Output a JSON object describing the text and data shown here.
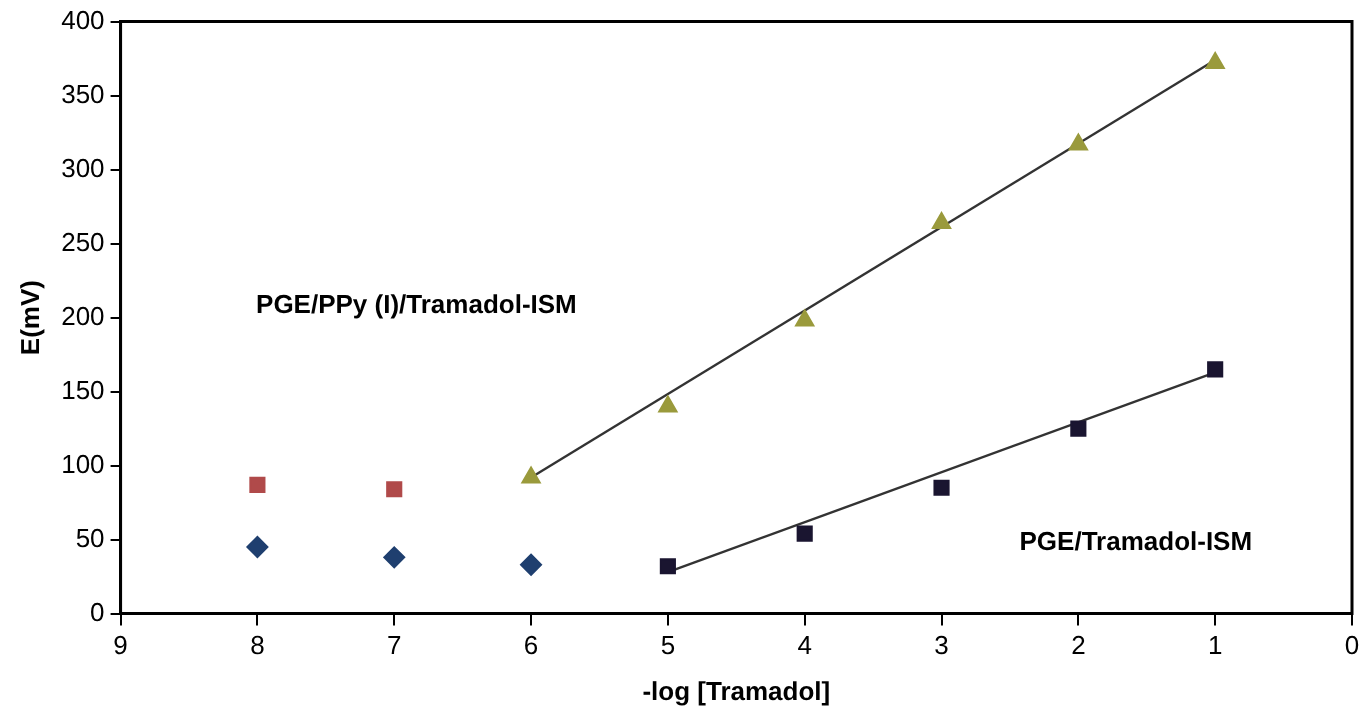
{
  "chart_data": {
    "type": "scatter",
    "xlabel": "-log [Tramadol]",
    "ylabel": "E(mV)",
    "xlim": [
      9,
      0
    ],
    "xticks": [
      9,
      8,
      7,
      6,
      5,
      4,
      3,
      2,
      1,
      0
    ],
    "ylim": [
      0,
      400
    ],
    "yticks": [
      0,
      50,
      100,
      150,
      200,
      250,
      300,
      350,
      400
    ],
    "grid": false,
    "legend": false,
    "series": [
      {
        "marker": "square",
        "color": "#b04a4a",
        "x": [
          8,
          7
        ],
        "values": [
          87,
          84
        ]
      },
      {
        "marker": "triangle",
        "color": "#9a9a3c",
        "x": [
          6,
          5,
          4,
          3,
          2,
          1
        ],
        "values": [
          92,
          140,
          198,
          264,
          317,
          372
        ]
      },
      {
        "marker": "diamond",
        "color": "#1f3f6f",
        "x": [
          8,
          7,
          6
        ],
        "values": [
          45,
          38,
          33
        ]
      },
      {
        "marker": "square",
        "color": "#1a1530",
        "x": [
          5,
          4,
          3,
          2,
          1
        ],
        "values": [
          32,
          54,
          85,
          125,
          165
        ]
      },
      {
        "type": "line",
        "marker": "none",
        "color": "#333333",
        "x": [
          6,
          1
        ],
        "values": [
          92,
          374
        ]
      },
      {
        "type": "line",
        "marker": "none",
        "color": "#333333",
        "x": [
          5,
          1
        ],
        "values": [
          28,
          163
        ]
      }
    ],
    "annotations": [
      "PGE/PPy (I)/Tramadol-ISM",
      "PGE/Tramadol-ISM"
    ]
  }
}
